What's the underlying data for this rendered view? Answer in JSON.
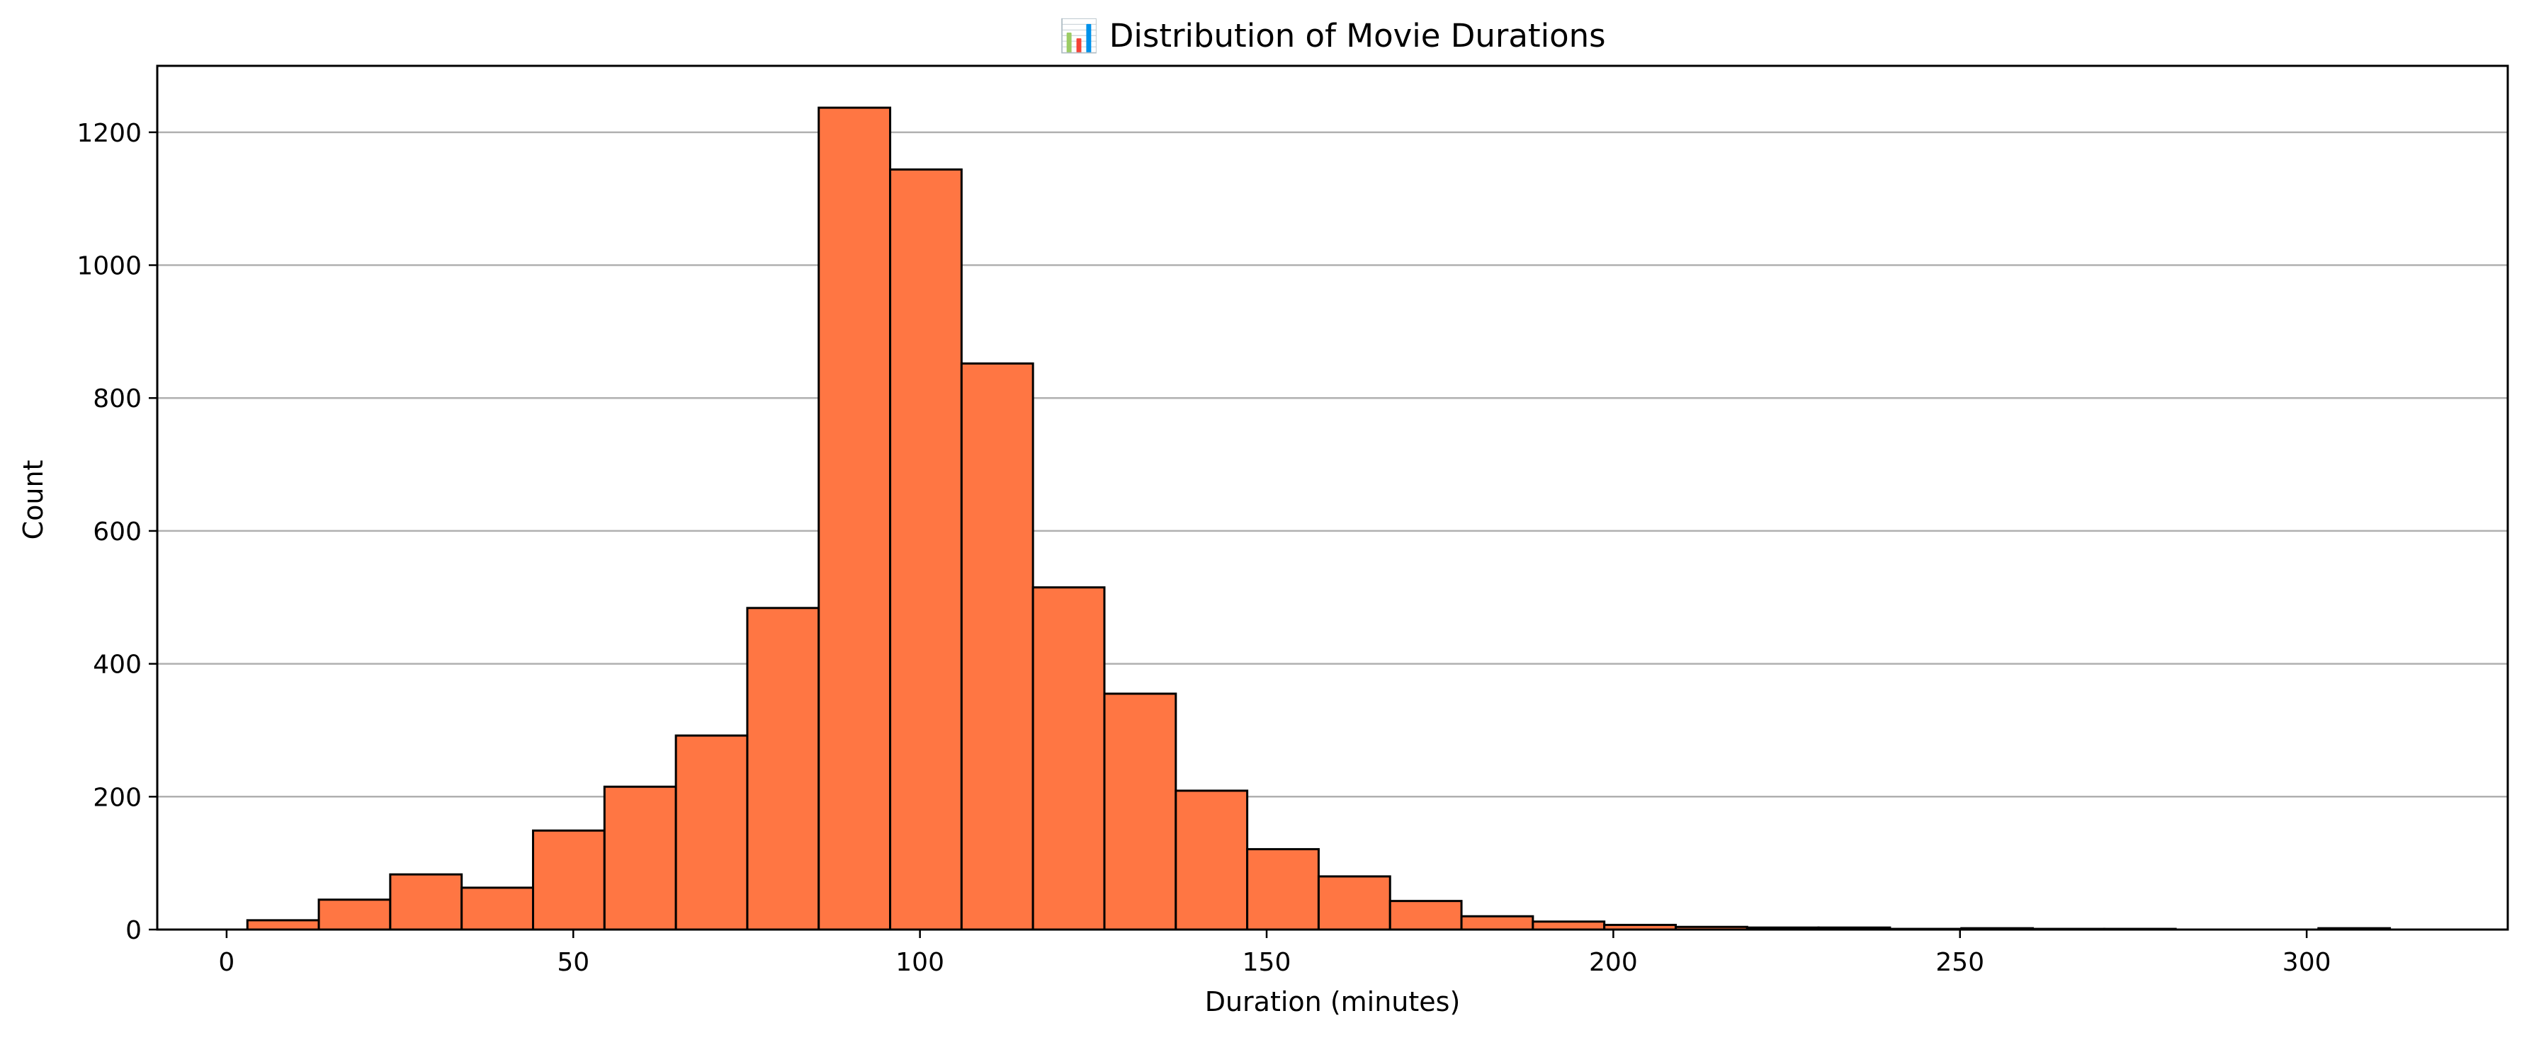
{
  "chart_data": {
    "type": "bar",
    "title": "📊 Distribution of Movie Durations",
    "xlabel": "Duration (minutes)",
    "ylabel": "Count",
    "xlim": [
      -10,
      329
    ],
    "ylim": [
      0,
      1300
    ],
    "xticks": [
      0,
      50,
      100,
      150,
      200,
      250,
      300
    ],
    "yticks": [
      0,
      200,
      400,
      600,
      800,
      1000,
      1200
    ],
    "grid": "y",
    "bar_color": "#ff7643",
    "edge_color": "#000000",
    "bin_edges": [
      3,
      13.3,
      23.6,
      33.9,
      44.2,
      54.5,
      64.8,
      75.1,
      85.4,
      95.7,
      106,
      116.3,
      126.6,
      136.9,
      147.2,
      157.5,
      167.8,
      178.1,
      188.4,
      198.7,
      209,
      219.3,
      229.6,
      239.9,
      250.2,
      260.5,
      270.8,
      281.1,
      291.4,
      301.7,
      312
    ],
    "values": [
      14,
      45,
      83,
      63,
      149,
      215,
      292,
      484,
      1237,
      1144,
      852,
      515,
      355,
      209,
      121,
      80,
      43,
      20,
      12,
      7,
      4,
      3,
      3,
      1,
      2,
      1,
      1,
      0,
      0,
      2
    ]
  }
}
